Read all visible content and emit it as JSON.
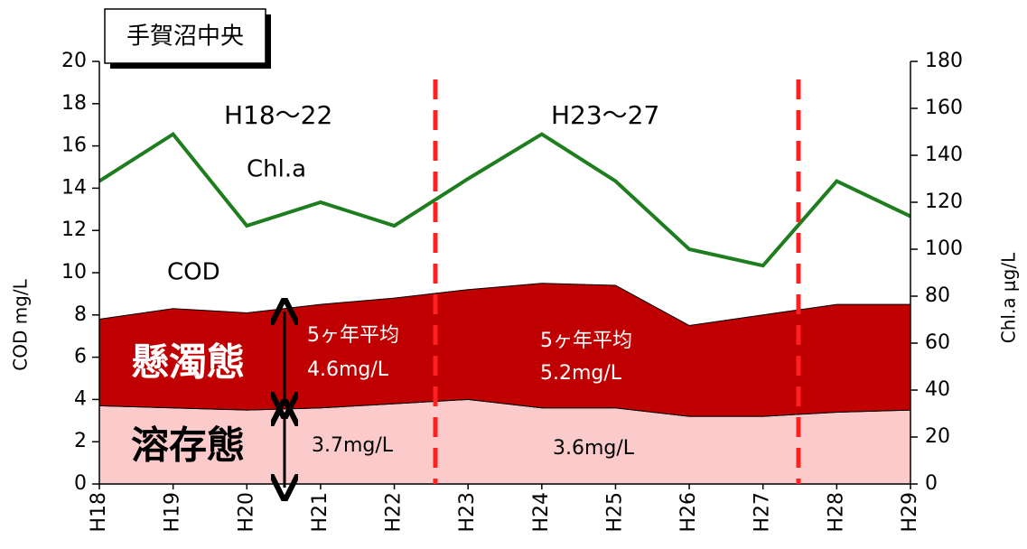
{
  "chart_data": {
    "type": "stacked-area-line",
    "title": "手賀沼中央",
    "categories": [
      "H18",
      "H19",
      "H20",
      "H21",
      "H22",
      "H23",
      "H24",
      "H25",
      "H26",
      "H27",
      "H28",
      "H29"
    ],
    "series": [
      {
        "name": "溶存態",
        "color": "#fbcaca",
        "values": [
          3.7,
          3.6,
          3.5,
          3.6,
          3.8,
          4.0,
          3.6,
          3.6,
          3.2,
          3.2,
          3.4,
          3.5
        ]
      },
      {
        "name": "懸濁態",
        "color": "#c00000",
        "values": [
          4.1,
          4.7,
          4.6,
          4.9,
          5.0,
          5.2,
          5.9,
          5.8,
          4.3,
          4.8,
          5.1,
          5.0
        ]
      },
      {
        "name": "Chl.a",
        "color": "#1e7d1e",
        "axis": "y2",
        "values": [
          129,
          149,
          110,
          120,
          110,
          130,
          149,
          129,
          100,
          93,
          129,
          114
        ]
      }
    ],
    "ylabel": "COD mg/L",
    "y2label": "Chl.a μg/L",
    "ylim": [
      0,
      20
    ],
    "yticks": [
      0,
      2,
      4,
      6,
      8,
      10,
      12,
      14,
      16,
      18,
      20
    ],
    "y2lim": [
      0,
      180
    ],
    "y2ticks": [
      0,
      20,
      40,
      60,
      80,
      100,
      120,
      140,
      160,
      180
    ],
    "annotations": [
      "H18～22",
      "H23～27",
      "COD",
      "5ヶ年平均",
      "4.6mg/L",
      "5ヶ年平均",
      "5.2mg/L",
      "3.7mg/L",
      "3.6mg/L"
    ]
  }
}
